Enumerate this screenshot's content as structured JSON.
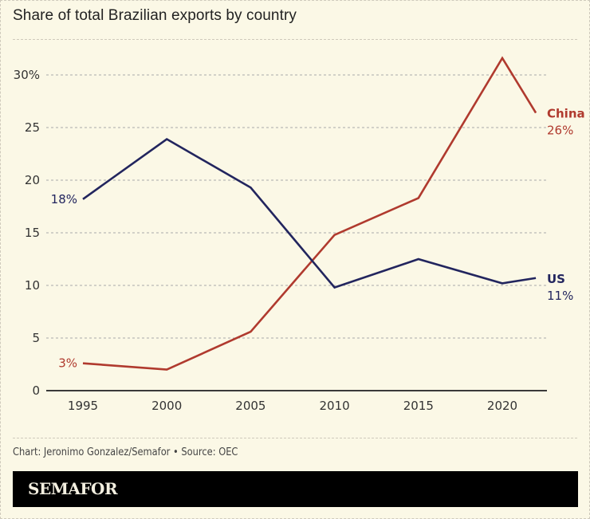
{
  "title": "Share of total Brazilian exports by country",
  "credit": "Chart: Jeronimo Gonzalez/Semafor • Source: OEC",
  "brand": "SEMAFOR",
  "colors": {
    "background": "#fbf8e6",
    "china": "#b03a2e",
    "us": "#22255e",
    "axis": "#333333",
    "grid": "#aaaaaa"
  },
  "chart_data": {
    "type": "line",
    "title": "Share of total Brazilian exports by country",
    "xlabel": "",
    "ylabel": "",
    "xlim": [
      1993,
      2023
    ],
    "ylim": [
      0,
      30
    ],
    "x_ticks": [
      1995,
      2000,
      2005,
      2010,
      2015,
      2020
    ],
    "x_tick_labels": [
      "1995",
      "2000",
      "2005",
      "2010",
      "2015",
      "2020"
    ],
    "y_ticks": [
      0,
      5,
      10,
      15,
      20,
      25,
      30
    ],
    "y_tick_labels": [
      "0",
      "5",
      "10",
      "15",
      "20",
      "25",
      "30%"
    ],
    "grid": "horizontal dashed",
    "legend": "direct labels at line ends (right)",
    "series": [
      {
        "name": "China",
        "color": "#b03a2e",
        "x": [
          1995,
          2000,
          2005,
          2010,
          2015,
          2020,
          2022
        ],
        "values": [
          2.6,
          2.0,
          5.6,
          14.8,
          18.3,
          31.6,
          26.4
        ],
        "start_label": "3%",
        "end_name": "China",
        "end_label": "26%"
      },
      {
        "name": "US",
        "color": "#22255e",
        "x": [
          1995,
          2000,
          2005,
          2010,
          2015,
          2020,
          2022
        ],
        "values": [
          18.2,
          23.9,
          19.3,
          9.8,
          12.5,
          10.2,
          10.7
        ],
        "start_label": "18%",
        "end_name": "US",
        "end_label": "11%"
      }
    ]
  }
}
